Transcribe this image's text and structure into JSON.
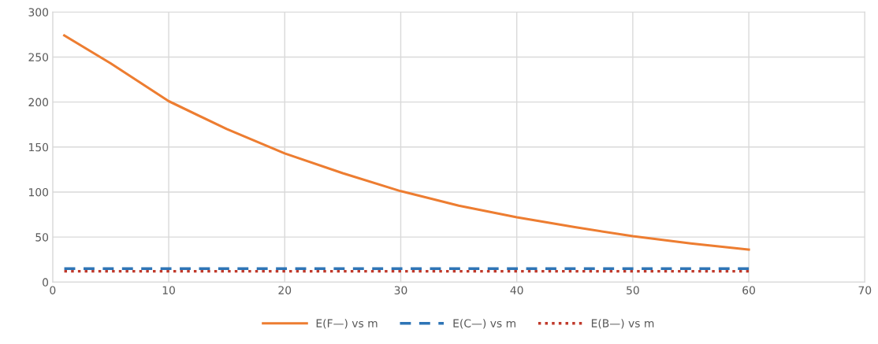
{
  "chart_data": {
    "type": "line",
    "xlim": [
      0,
      70
    ],
    "xticks": [
      0,
      10,
      20,
      30,
      40,
      50,
      60,
      70
    ],
    "ylim": [
      0,
      300
    ],
    "yticks": [
      0,
      50,
      100,
      150,
      200,
      250,
      300
    ],
    "grid": true,
    "legend": "bottom",
    "marker": "none",
    "series": [
      {
        "name": "E(F—) vs m",
        "color": "#ed7d31",
        "line_style": "solid",
        "x": [
          1,
          5,
          10,
          15,
          20,
          25,
          30,
          35,
          40,
          45,
          50,
          55,
          60
        ],
        "values": [
          274,
          243,
          201,
          170,
          143,
          121,
          101,
          85,
          72,
          61,
          51,
          43,
          36
        ]
      },
      {
        "name": "E(C—) vs m",
        "color": "#2e75b6",
        "line_style": "dashed",
        "x": [
          1,
          60
        ],
        "values": [
          15,
          15
        ]
      },
      {
        "name": "E(B—) vs m",
        "color": "#c0392b",
        "line_style": "dotted",
        "x": [
          1,
          60
        ],
        "values": [
          12,
          12
        ]
      }
    ]
  }
}
